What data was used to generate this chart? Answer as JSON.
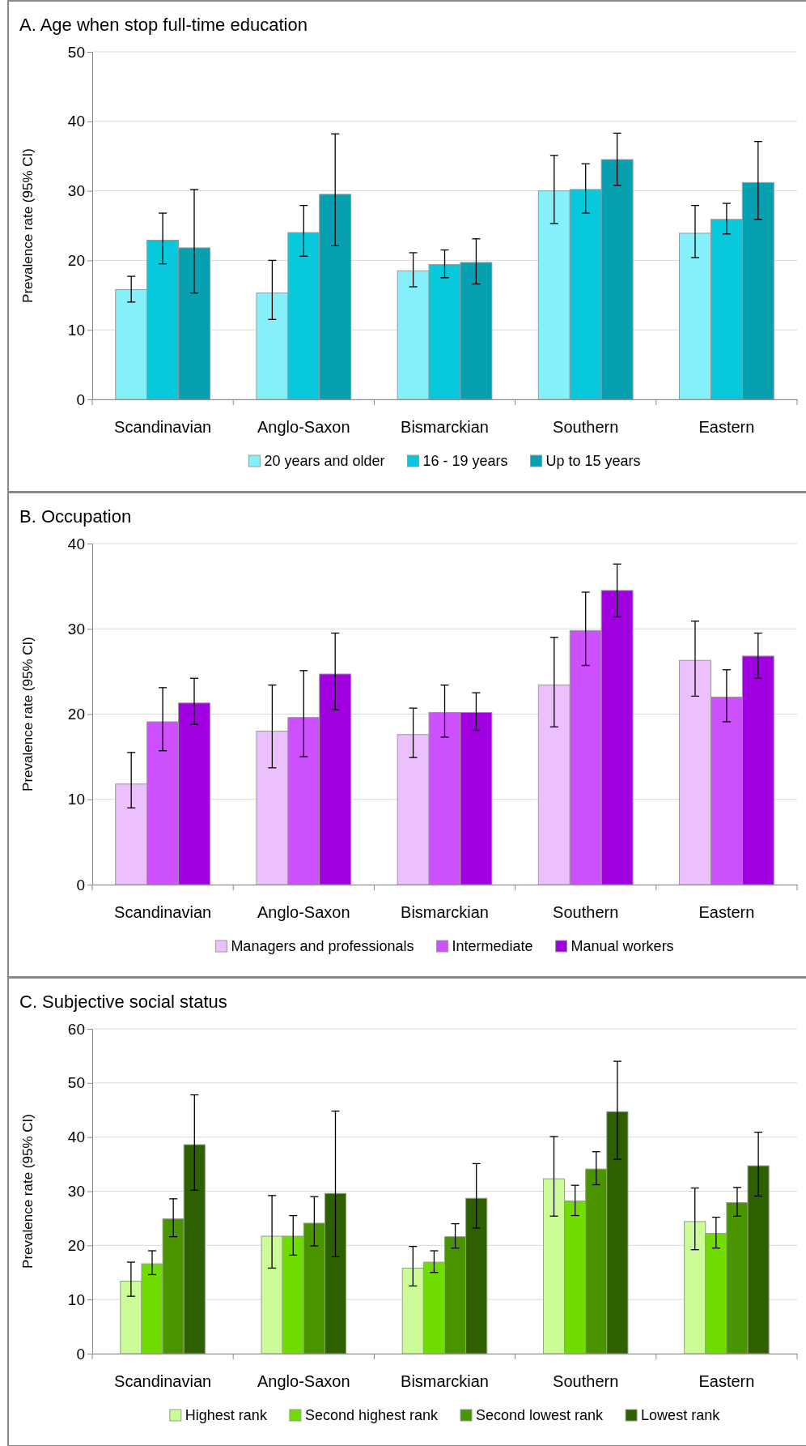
{
  "chart_data": [
    {
      "type": "bar",
      "title": "A. Age when stop full-time education",
      "ylabel": "Prevalence rate (95% CI)",
      "categories": [
        "Scandinavian",
        "Anglo-Saxon",
        "Bismarckian",
        "Southern",
        "Eastern"
      ],
      "ylim": [
        0,
        50
      ],
      "yticks": [
        0,
        10,
        20,
        30,
        40,
        50
      ],
      "grid": "y",
      "legend": "bottom",
      "series": [
        {
          "name": "20 years and older",
          "color": "#85f0fa",
          "values": [
            15.8,
            15.3,
            18.5,
            30.0,
            23.9
          ],
          "errors": [
            [
              14.0,
              17.7
            ],
            [
              11.5,
              20.0
            ],
            [
              16.2,
              21.1
            ],
            [
              25.3,
              35.1
            ],
            [
              20.4,
              27.9
            ]
          ]
        },
        {
          "name": "16 - 19 years",
          "color": "#08c8dc",
          "values": [
            22.9,
            24.0,
            19.4,
            30.2,
            25.9
          ],
          "errors": [
            [
              19.5,
              26.8
            ],
            [
              20.6,
              27.9
            ],
            [
              17.5,
              21.5
            ],
            [
              26.8,
              33.9
            ],
            [
              23.8,
              28.2
            ]
          ]
        },
        {
          "name": "Up to 15 years",
          "color": "#06a0b0",
          "values": [
            21.8,
            29.5,
            19.7,
            34.5,
            31.2
          ],
          "errors": [
            [
              15.3,
              30.2
            ],
            [
              22.1,
              38.2
            ],
            [
              16.6,
              23.1
            ],
            [
              30.8,
              38.3
            ],
            [
              25.9,
              37.1
            ]
          ]
        }
      ]
    },
    {
      "type": "bar",
      "title": "B. Occupation",
      "ylabel": "Prevalence rate (95% CI)",
      "categories": [
        "Scandinavian",
        "Anglo-Saxon",
        "Bismarckian",
        "Southern",
        "Eastern"
      ],
      "ylim": [
        0,
        40
      ],
      "yticks": [
        0,
        10,
        20,
        30,
        40
      ],
      "grid": "y",
      "legend": "bottom",
      "series": [
        {
          "name": "Managers and professionals",
          "color": "#ecc0fc",
          "values": [
            11.8,
            18.0,
            17.6,
            23.4,
            26.3
          ],
          "errors": [
            [
              9.0,
              15.5
            ],
            [
              13.7,
              23.4
            ],
            [
              14.9,
              20.7
            ],
            [
              18.5,
              29.0
            ],
            [
              22.1,
              30.9
            ]
          ]
        },
        {
          "name": "Intermediate",
          "color": "#cc50fc",
          "values": [
            19.1,
            19.6,
            20.2,
            29.8,
            22.0
          ],
          "errors": [
            [
              15.7,
              23.1
            ],
            [
              15.0,
              25.1
            ],
            [
              17.3,
              23.4
            ],
            [
              25.7,
              34.3
            ],
            [
              19.1,
              25.2
            ]
          ]
        },
        {
          "name": "Manual workers",
          "color": "#a000e0",
          "values": [
            21.3,
            24.7,
            20.2,
            34.5,
            26.8
          ],
          "errors": [
            [
              18.8,
              24.2
            ],
            [
              20.5,
              29.5
            ],
            [
              18.1,
              22.5
            ],
            [
              31.4,
              37.6
            ],
            [
              24.2,
              29.5
            ]
          ]
        }
      ]
    },
    {
      "type": "bar",
      "title": "C. Subjective social status",
      "ylabel": "Prevalence rate (95% CI)",
      "categories": [
        "Scandinavian",
        "Anglo-Saxon",
        "Bismarckian",
        "Southern",
        "Eastern"
      ],
      "ylim": [
        0,
        60
      ],
      "yticks": [
        0,
        10,
        20,
        30,
        40,
        50,
        60
      ],
      "grid": "y",
      "legend": "bottom",
      "series": [
        {
          "name": "Highest rank",
          "color": "#ccfc98",
          "values": [
            13.4,
            21.7,
            15.8,
            32.3,
            24.4
          ],
          "errors": [
            [
              10.6,
              16.9
            ],
            [
              15.8,
              29.2
            ],
            [
              12.5,
              19.8
            ],
            [
              25.4,
              40.1
            ],
            [
              19.2,
              30.6
            ]
          ]
        },
        {
          "name": "Second highest rank",
          "color": "#70dc00",
          "values": [
            16.6,
            21.7,
            16.9,
            28.2,
            22.2
          ],
          "errors": [
            [
              14.6,
              19.0
            ],
            [
              18.2,
              25.5
            ],
            [
              15.0,
              19.0
            ],
            [
              25.5,
              31.1
            ],
            [
              19.5,
              25.2
            ]
          ]
        },
        {
          "name": "Second lowest rank",
          "color": "#4a9400",
          "values": [
            24.9,
            24.1,
            21.6,
            34.1,
            27.9
          ],
          "errors": [
            [
              21.6,
              28.6
            ],
            [
              19.9,
              29.0
            ],
            [
              19.5,
              24.0
            ],
            [
              31.2,
              37.3
            ],
            [
              25.4,
              30.7
            ]
          ]
        },
        {
          "name": "Lowest rank",
          "color": "#2e6000",
          "values": [
            38.6,
            29.6,
            28.7,
            44.7,
            34.7
          ],
          "errors": [
            [
              30.2,
              47.8
            ],
            [
              17.9,
              44.8
            ],
            [
              23.2,
              35.1
            ],
            [
              35.9,
              54.0
            ],
            [
              29.1,
              40.9
            ]
          ]
        }
      ]
    }
  ]
}
